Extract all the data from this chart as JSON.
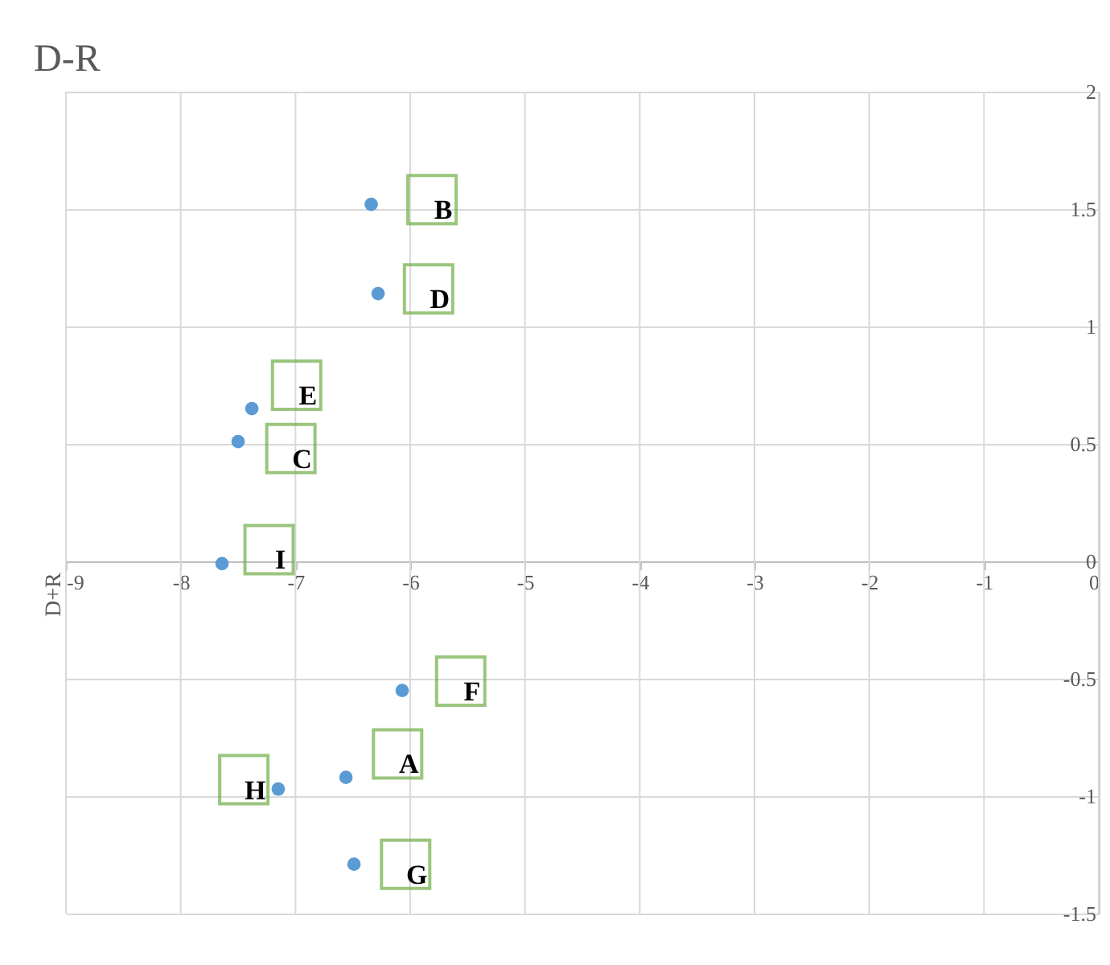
{
  "chart_data": {
    "type": "scatter",
    "title": "D-R",
    "ylabel": "D+R",
    "x": [
      -6.34,
      -6.28,
      -7.38,
      -7.5,
      -7.64,
      -6.07,
      -6.56,
      -7.15,
      -6.49
    ],
    "series": [
      {
        "color": "#5b9bd5",
        "values": [
          1.52,
          1.14,
          0.65,
          0.51,
          -0.01,
          -0.55,
          -0.92,
          -0.97,
          -1.29
        ]
      }
    ],
    "annotations": [
      {
        "text": "B",
        "x": -5.81,
        "y": 1.54
      },
      {
        "text": "D",
        "x": -5.84,
        "y": 1.16
      },
      {
        "text": "E",
        "x": -6.99,
        "y": 0.75
      },
      {
        "text": "C",
        "x": -7.04,
        "y": 0.48
      },
      {
        "text": "I",
        "x": -7.23,
        "y": 0.05
      },
      {
        "text": "F",
        "x": -5.56,
        "y": -0.51
      },
      {
        "text": "A",
        "x": -6.11,
        "y": -0.82
      },
      {
        "text": "H",
        "x": -7.45,
        "y": -0.93
      },
      {
        "text": "G",
        "x": -6.04,
        "y": -1.29
      }
    ],
    "xlim": [
      -9,
      0
    ],
    "xticks": [
      -9,
      -8,
      -7,
      -6,
      -5,
      -4,
      -3,
      -2,
      -1,
      0
    ],
    "ylim": [
      -1.5,
      2
    ],
    "yticks": [
      -1.5,
      -1,
      -0.5,
      0,
      0.5,
      1,
      1.5,
      2
    ],
    "grid": true,
    "marker": "circle"
  }
}
